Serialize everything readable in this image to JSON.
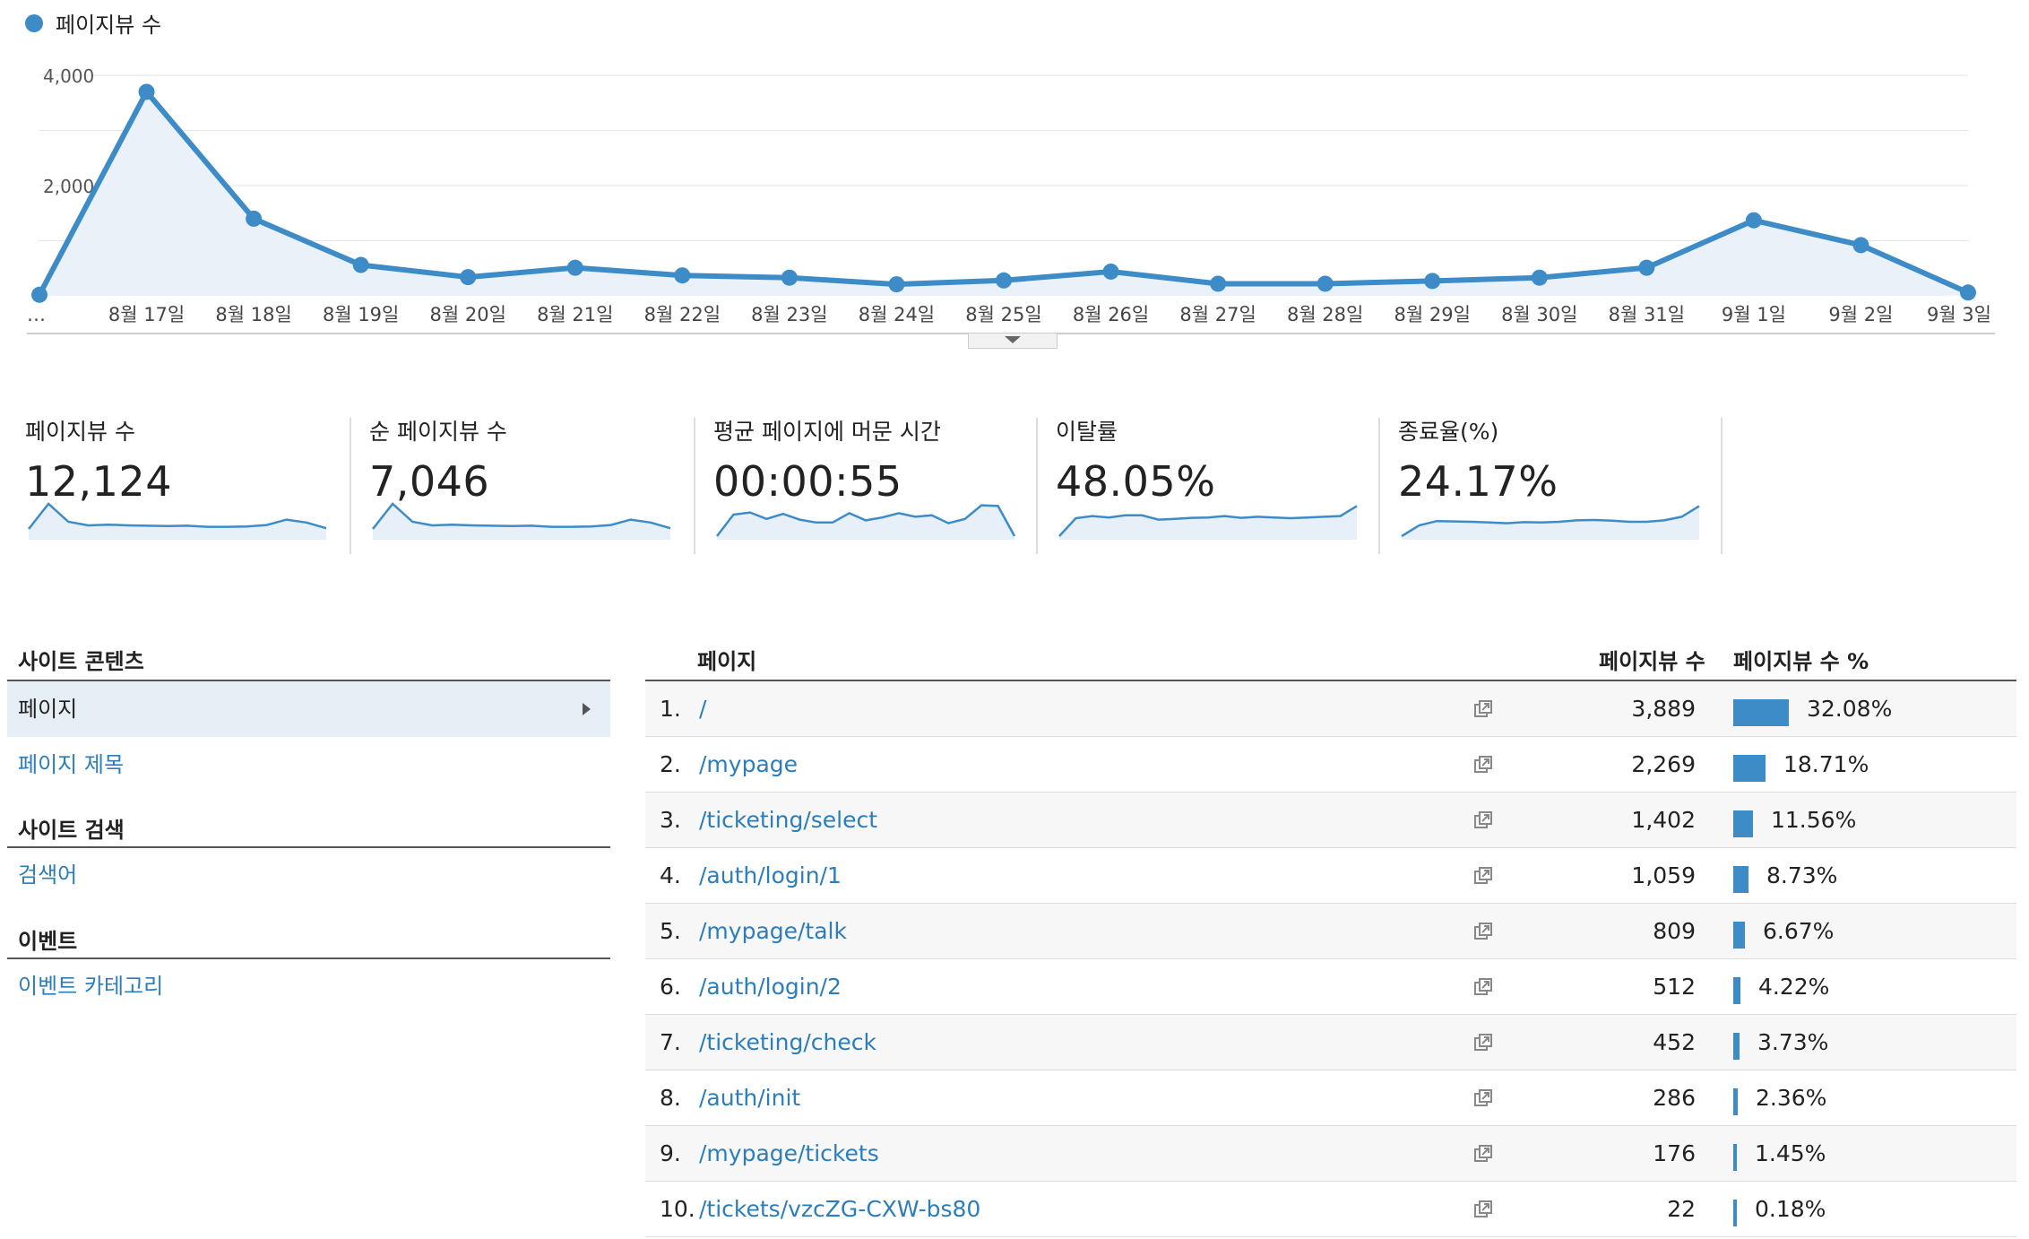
{
  "legend": {
    "label": "페이지뷰 수",
    "color": "#3d8cc8"
  },
  "chart_data": {
    "type": "area",
    "title": "",
    "xlabel": "",
    "ylabel": "",
    "ylim": [
      0,
      4000
    ],
    "yticks": [
      "4,000",
      "2,000"
    ],
    "x": [
      "…",
      "8월 17일",
      "8월 18일",
      "8월 19일",
      "8월 20일",
      "8월 21일",
      "8월 22일",
      "8월 23일",
      "8월 24일",
      "8월 25일",
      "8월 26일",
      "8월 27일",
      "8월 28일",
      "8월 29일",
      "8월 30일",
      "8월 31일",
      "9월 1일",
      "9월 2일",
      "9월 3일"
    ],
    "series": [
      {
        "name": "페이지뷰 수",
        "values": [
          20,
          3700,
          1400,
          560,
          340,
          510,
          370,
          330,
          210,
          280,
          440,
          220,
          220,
          270,
          330,
          510,
          1370,
          920,
          60
        ]
      }
    ],
    "grid": true,
    "legend_position": "top-left"
  },
  "metrics": [
    {
      "label": "페이지뷰 수",
      "value": "12,124",
      "spark": [
        3,
        10,
        5,
        4,
        4.2,
        4,
        3.9,
        3.8,
        3.9,
        3.6,
        3.6,
        3.7,
        4.1,
        5.6,
        4.8,
        3.2
      ]
    },
    {
      "label": "순 페이지뷰 수",
      "value": "7,046",
      "spark": [
        3,
        10,
        5,
        4,
        4.2,
        4,
        3.9,
        3.8,
        3.9,
        3.6,
        3.6,
        3.7,
        4.1,
        5.6,
        4.8,
        3.2
      ]
    },
    {
      "label": "평균 페이지에 머문 시간",
      "value": "00:00:55",
      "spark": [
        1,
        7,
        7.6,
        5.8,
        7.2,
        5.6,
        4.8,
        4.8,
        7.4,
        5.4,
        6.2,
        7.4,
        6.4,
        6.8,
        4.6,
        5.8,
        9.6,
        9.4,
        1
      ]
    },
    {
      "label": "이탈률",
      "value": "48.05%",
      "spark": [
        1,
        6,
        6.6,
        6.2,
        6.8,
        6.8,
        5.6,
        5.8,
        6.1,
        6.2,
        6.6,
        6.1,
        6.4,
        6.2,
        6.0,
        6.2,
        6.4,
        6.6,
        9.4
      ]
    },
    {
      "label": "종료율(%)",
      "value": "24.17%",
      "spark": [
        1,
        4,
        5.2,
        5.1,
        5.0,
        4.8,
        4.6,
        4.9,
        4.8,
        5.0,
        5.4,
        5.5,
        5.3,
        5.0,
        5.0,
        5.4,
        6.4,
        9.4
      ]
    }
  ],
  "nav": {
    "sections": [
      {
        "title": "사이트 콘텐츠",
        "items": [
          "페이지",
          "페이지 제목"
        ]
      },
      {
        "title": "사이트 검색",
        "items": [
          "검색어"
        ]
      },
      {
        "title": "이벤트",
        "items": [
          "이벤트 카테고리"
        ]
      }
    ]
  },
  "table": {
    "headers": {
      "page": "페이지",
      "views": "페이지뷰 수",
      "percent": "페이지뷰 수 %"
    },
    "rows": [
      {
        "rank": "1.",
        "page": "/",
        "views": "3,889",
        "percent": "32.08%",
        "share": 0.3208
      },
      {
        "rank": "2.",
        "page": "/mypage",
        "views": "2,269",
        "percent": "18.71%",
        "share": 0.1871
      },
      {
        "rank": "3.",
        "page": "/ticketing/select",
        "views": "1,402",
        "percent": "11.56%",
        "share": 0.1156
      },
      {
        "rank": "4.",
        "page": "/auth/login/1",
        "views": "1,059",
        "percent": "8.73%",
        "share": 0.0873
      },
      {
        "rank": "5.",
        "page": "/mypage/talk",
        "views": "809",
        "percent": "6.67%",
        "share": 0.0667
      },
      {
        "rank": "6.",
        "page": "/auth/login/2",
        "views": "512",
        "percent": "4.22%",
        "share": 0.0422
      },
      {
        "rank": "7.",
        "page": "/ticketing/check",
        "views": "452",
        "percent": "3.73%",
        "share": 0.0373
      },
      {
        "rank": "8.",
        "page": "/auth/init",
        "views": "286",
        "percent": "2.36%",
        "share": 0.0236
      },
      {
        "rank": "9.",
        "page": "/mypage/tickets",
        "views": "176",
        "percent": "1.45%",
        "share": 0.0145
      },
      {
        "rank": "10.",
        "page": "/tickets/vzcZG-CXW-bs80",
        "views": "22",
        "percent": "0.18%",
        "share": 0.0018
      }
    ]
  }
}
